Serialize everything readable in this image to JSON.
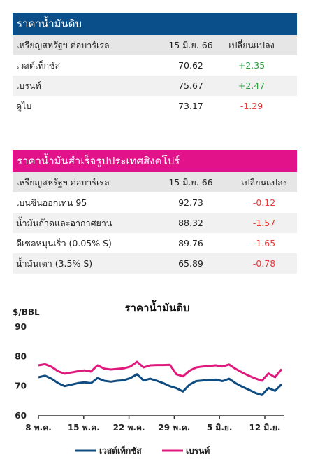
{
  "crude": {
    "title": "ราคาน้ำมันดิบ",
    "header": {
      "name": "เหรียญสหรัฐฯ ต่อบาร์เรล",
      "date": "15 มิ.ย. 66",
      "change": "เปลี่ยนแปลง"
    },
    "rows": [
      {
        "name": "เวสต์เท็กซัส",
        "price": "70.62",
        "change": "+2.35",
        "trend": "up"
      },
      {
        "name": "เบรนท์",
        "price": "75.67",
        "change": "+2.47",
        "trend": "up"
      },
      {
        "name": "ดูไบ",
        "price": "73.17",
        "change": "-1.29",
        "trend": "down"
      }
    ]
  },
  "refined": {
    "title": "ราคาน้ำมันสำเร็จรูปประเทศสิงคโปร์",
    "header": {
      "name": "เหรียญสหรัฐฯ ต่อบาร์เรล",
      "date": "15 มิ.ย. 66",
      "change": "เปลี่ยนแปลง"
    },
    "rows": [
      {
        "name": "เบนซินออกเทน 95",
        "price": "92.73",
        "change": "-0.12",
        "trend": "down"
      },
      {
        "name": "น้ำมันก๊าดและอากาศยาน",
        "price": "88.32",
        "change": "-1.57",
        "trend": "down"
      },
      {
        "name": "ดีเซลหมุนเร็ว (0.05% S)",
        "price": "89.76",
        "change": "-1.65",
        "trend": "down"
      },
      {
        "name": "น้ำมันเตา (3.5% S)",
        "price": "65.89",
        "change": "-0.78",
        "trend": "down"
      }
    ]
  },
  "colors": {
    "blue_banner": "#0b4f8a",
    "pink_banner": "#e2128b",
    "up": "#2e9e45",
    "down": "#e23b3b",
    "wti_line": "#0f4c81",
    "brent_line": "#e0197d"
  },
  "chart_data": {
    "type": "line",
    "title": "ราคาน้ำมันดิบ",
    "ylabel": "$/BBL",
    "xlabel": "",
    "ylim": [
      60,
      90
    ],
    "yticks": [
      60,
      70,
      80,
      90
    ],
    "grid": false,
    "legend": "bottom",
    "xtick_labels": [
      "8 พ.ค.",
      "15 พ.ค.",
      "22 พ.ค.",
      "29 พ.ค.",
      "5 มิ.ย.",
      "12 มิ.ย."
    ],
    "series": [
      {
        "name": "เวสต์เท็กซัส",
        "color": "#0f4c81",
        "values": [
          73.0,
          73.5,
          72.5,
          71.0,
          70.0,
          70.5,
          71.0,
          71.3,
          71.0,
          72.7,
          71.8,
          71.5,
          71.8,
          72.0,
          72.7,
          74.0,
          71.9,
          72.5,
          71.8,
          71.0,
          70.0,
          69.3,
          68.2,
          70.5,
          71.7,
          71.9,
          72.1,
          72.2,
          71.7,
          72.5,
          71.0,
          69.8,
          68.8,
          67.7,
          67.0,
          69.4,
          68.4,
          70.6
        ]
      },
      {
        "name": "เบรนท์",
        "color": "#e0197d",
        "values": [
          77.0,
          77.4,
          76.5,
          75.0,
          74.2,
          74.6,
          75.0,
          75.3,
          74.9,
          77.0,
          75.9,
          75.6,
          75.8,
          76.0,
          76.6,
          78.2,
          76.3,
          77.0,
          77.1,
          77.1,
          77.2,
          74.0,
          73.3,
          75.2,
          76.3,
          76.6,
          76.8,
          77.0,
          76.6,
          77.3,
          75.8,
          74.6,
          73.5,
          72.6,
          71.8,
          74.3,
          73.0,
          75.7
        ]
      }
    ]
  }
}
